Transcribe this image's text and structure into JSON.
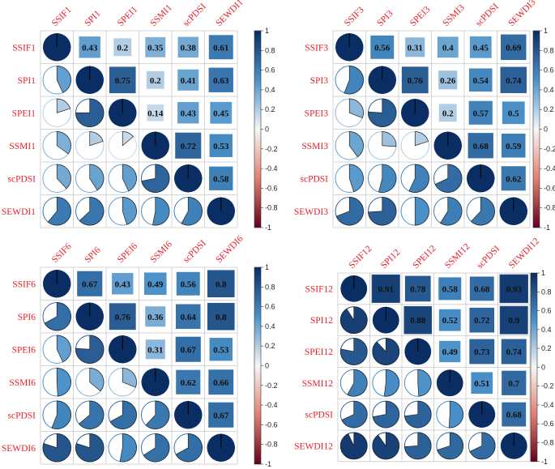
{
  "chart_data": [
    {
      "type": "heatmap",
      "title": "",
      "variables": [
        "SSIF1",
        "SPI1",
        "SPEI1",
        "SSMI1",
        "scPDSI",
        "SEWDI1"
      ],
      "matrix": [
        [
          1,
          0.43,
          0.2,
          0.35,
          0.38,
          0.61
        ],
        [
          0.43,
          1,
          0.75,
          0.2,
          0.41,
          0.63
        ],
        [
          0.2,
          0.75,
          1,
          0.14,
          0.43,
          0.45
        ],
        [
          0.35,
          0.2,
          0.14,
          1,
          0.72,
          0.53
        ],
        [
          0.38,
          0.41,
          0.43,
          0.72,
          1,
          0.58
        ],
        [
          0.61,
          0.63,
          0.45,
          0.53,
          0.58,
          1
        ]
      ],
      "labels_upper": [
        [
          "0.43",
          "0.2",
          "0.35",
          "0.38",
          "0.61"
        ],
        [
          "0.75",
          "0.2",
          "0.41",
          "0.63"
        ],
        [
          "0.14",
          "0.43",
          "0.45"
        ],
        [
          "0.72",
          "0.53"
        ],
        [
          "0.58"
        ]
      ],
      "colorbar_ticks": [
        "1",
        "0.8",
        "0.6",
        "0.4",
        "0.2",
        "0",
        "-0.2",
        "-0.4",
        "-0.6",
        "-0.8",
        "-1"
      ],
      "colorbar_range": [
        -1,
        1
      ]
    },
    {
      "type": "heatmap",
      "title": "",
      "variables": [
        "SSIF3",
        "SPI3",
        "SPEI3",
        "SSMI3",
        "scPDSI",
        "SEWDI3"
      ],
      "matrix": [
        [
          1,
          0.56,
          0.31,
          0.4,
          0.45,
          0.69
        ],
        [
          0.56,
          1,
          0.76,
          0.26,
          0.54,
          0.74
        ],
        [
          0.31,
          0.76,
          1,
          0.2,
          0.57,
          0.5
        ],
        [
          0.4,
          0.26,
          0.2,
          1,
          0.68,
          0.59
        ],
        [
          0.45,
          0.54,
          0.57,
          0.68,
          1,
          0.62
        ],
        [
          0.69,
          0.74,
          0.5,
          0.59,
          0.62,
          1
        ]
      ],
      "labels_upper": [
        [
          "0.56",
          "0.31",
          "0.4",
          "0.45",
          "0.69"
        ],
        [
          "0.76",
          "0.26",
          "0.54",
          "0.74"
        ],
        [
          "0.2",
          "0.57",
          "0.5"
        ],
        [
          "0.68",
          "0.59"
        ],
        [
          "0.62"
        ]
      ],
      "colorbar_ticks": [
        "1",
        "0.8",
        "0.6",
        "0.4",
        "0.2",
        "0",
        "-0.2",
        "-0.4",
        "-0.6",
        "-0.8",
        "-1"
      ],
      "colorbar_range": [
        -1,
        1
      ]
    },
    {
      "type": "heatmap",
      "title": "",
      "variables": [
        "SSIF6",
        "SPI6",
        "SPEI6",
        "SSMI6",
        "scPDSI",
        "SEWDI6"
      ],
      "matrix": [
        [
          1,
          0.67,
          0.43,
          0.49,
          0.56,
          0.8
        ],
        [
          0.67,
          1,
          0.76,
          0.36,
          0.64,
          0.8
        ],
        [
          0.43,
          0.76,
          1,
          0.31,
          0.67,
          0.53
        ],
        [
          0.49,
          0.36,
          0.31,
          1,
          0.62,
          0.66
        ],
        [
          0.56,
          0.64,
          0.67,
          0.62,
          1,
          0.67
        ],
        [
          0.8,
          0.8,
          0.53,
          0.66,
          0.67,
          1
        ]
      ],
      "labels_upper": [
        [
          "0.67",
          "0.43",
          "0.49",
          "0.56",
          "0.8"
        ],
        [
          "0.76",
          "0.36",
          "0.64",
          "0.8"
        ],
        [
          "0.31",
          "0.67",
          "0.53"
        ],
        [
          "0.62",
          "0.66"
        ],
        [
          "0.67"
        ]
      ],
      "colorbar_ticks": [
        "1",
        "0.8",
        "0.6",
        "0.4",
        "0.2",
        "0",
        "-0.2",
        "-0.4",
        "-0.6",
        "-0.8",
        "-1"
      ],
      "colorbar_range": [
        -1,
        1
      ]
    },
    {
      "type": "heatmap",
      "title": "",
      "variables": [
        "SSIF12",
        "SPI12",
        "SPEI12",
        "SSMI12",
        "scPDSI",
        "SEWDI12"
      ],
      "matrix": [
        [
          1,
          0.91,
          0.78,
          0.58,
          0.68,
          0.93
        ],
        [
          0.91,
          1,
          0.88,
          0.52,
          0.72,
          0.9
        ],
        [
          0.78,
          0.88,
          1,
          0.49,
          0.73,
          0.74
        ],
        [
          0.58,
          0.52,
          0.49,
          1,
          0.51,
          0.7
        ],
        [
          0.68,
          0.72,
          0.73,
          0.51,
          1,
          0.68
        ],
        [
          0.93,
          0.9,
          0.74,
          0.7,
          0.68,
          1
        ]
      ],
      "labels_upper": [
        [
          "0.91",
          "0.78",
          "0.58",
          "0.68",
          "0.93"
        ],
        [
          "0.88",
          "0.52",
          "0.72",
          "0.9"
        ],
        [
          "0.49",
          "0.73",
          "0.74"
        ],
        [
          "0.51",
          "0.7"
        ],
        [
          "0.68"
        ]
      ],
      "colorbar_ticks": [
        "1",
        "0.8",
        "0.6",
        "0.4",
        "0.2",
        "0",
        "-0.2",
        "-0.4",
        "-0.6",
        "-0.8",
        "-1"
      ],
      "colorbar_range": [
        -1,
        1
      ]
    }
  ],
  "colors": {
    "label": "#e8212a",
    "grid": "#c9c9c9",
    "positive_max": "#0a2d63",
    "positive_mid": "#4a90c8",
    "neutral": "#f7f7f7",
    "negative_mid": "#e08070",
    "negative_max": "#67001f"
  }
}
